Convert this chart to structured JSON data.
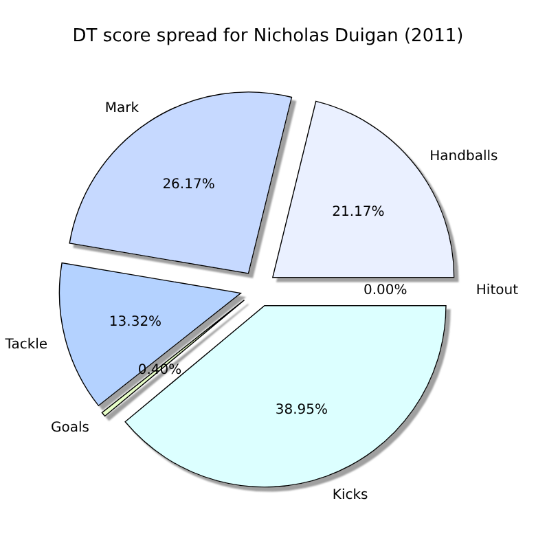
{
  "chart_data": {
    "type": "pie",
    "title": "DT score spread for Nicholas Duigan (2011)",
    "categories": [
      "Handballs",
      "Mark",
      "Tackle",
      "Goals",
      "Kicks",
      "Hitout"
    ],
    "values": [
      21.17,
      26.17,
      13.32,
      0.4,
      38.95,
      0.0
    ],
    "value_labels": [
      "21.17%",
      "26.17%",
      "13.32%",
      "0.40%",
      "38.95%",
      "0.00%"
    ],
    "colors": [
      "#eaf0ff",
      "#c6d9ff",
      "#b4d2ff",
      "#e8ffc8",
      "#dcffff",
      "#ffffe0"
    ]
  }
}
